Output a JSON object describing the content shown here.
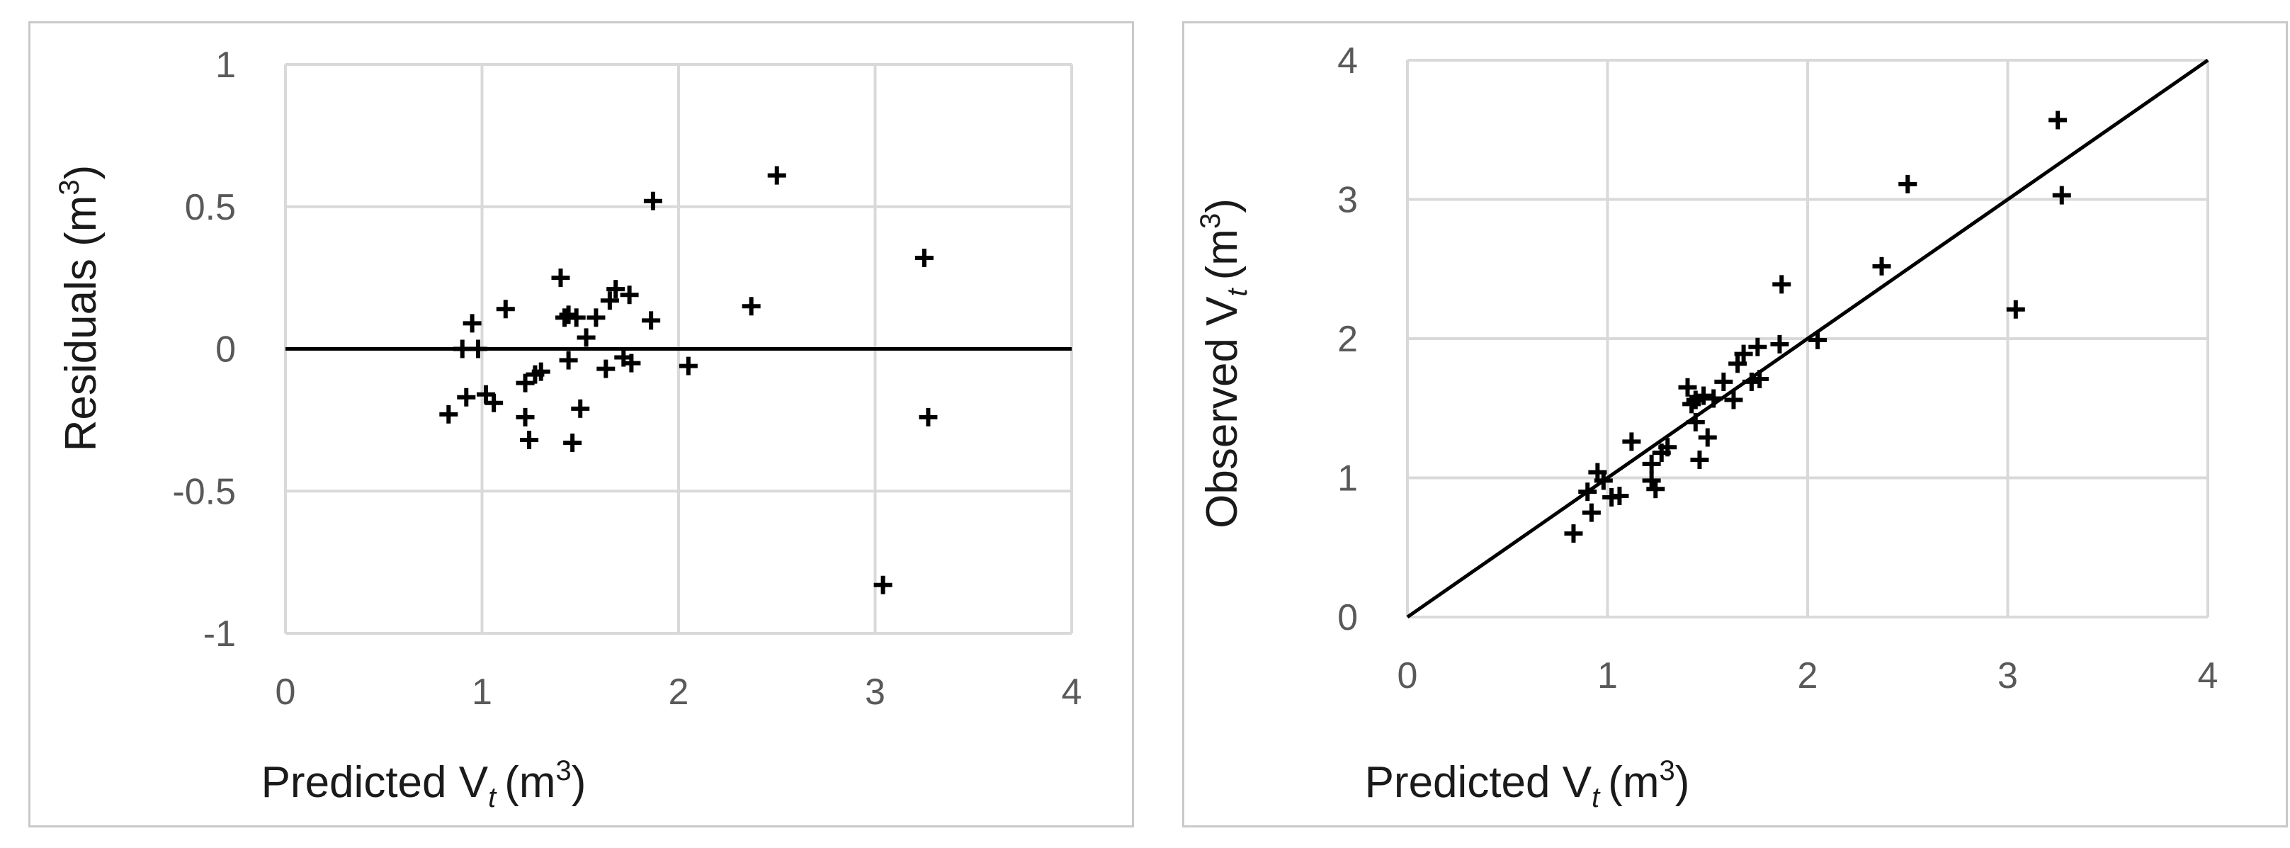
{
  "chart_data": [
    {
      "type": "scatter",
      "title": "",
      "xlabel": "Predicted V",
      "xlabel_sub": "t",
      "xlabel_unit_pre": "(m",
      "xlabel_unit_sup": "3",
      "xlabel_unit_post": ")",
      "ylabel": "Residuals (m",
      "ylabel_sup": "3",
      "ylabel_post": ")",
      "xlim": [
        0,
        4
      ],
      "ylim": [
        -1,
        1
      ],
      "x_ticks": [
        "0",
        "1",
        "2",
        "3",
        "4"
      ],
      "y_ticks": [
        "-1",
        "-0.5",
        "0",
        "0.5",
        "1"
      ],
      "grid": true,
      "reference_line": "y=0",
      "marker": "plus",
      "points": [
        [
          0.83,
          -0.23
        ],
        [
          0.9,
          0.0
        ],
        [
          0.92,
          -0.17
        ],
        [
          0.95,
          0.09
        ],
        [
          0.98,
          0.0
        ],
        [
          1.02,
          -0.16
        ],
        [
          1.06,
          -0.19
        ],
        [
          1.12,
          0.14
        ],
        [
          1.22,
          -0.12
        ],
        [
          1.22,
          -0.24
        ],
        [
          1.24,
          -0.32
        ],
        [
          1.27,
          -0.09
        ],
        [
          1.3,
          -0.08
        ],
        [
          1.4,
          0.25
        ],
        [
          1.42,
          0.11
        ],
        [
          1.44,
          0.12
        ],
        [
          1.44,
          -0.04
        ],
        [
          1.46,
          -0.33
        ],
        [
          1.48,
          0.11
        ],
        [
          1.5,
          -0.21
        ],
        [
          1.53,
          0.04
        ],
        [
          1.58,
          0.11
        ],
        [
          1.63,
          -0.07
        ],
        [
          1.65,
          0.17
        ],
        [
          1.68,
          0.21
        ],
        [
          1.72,
          -0.03
        ],
        [
          1.75,
          0.19
        ],
        [
          1.76,
          -0.05
        ],
        [
          1.86,
          0.1
        ],
        [
          1.87,
          0.52
        ],
        [
          2.05,
          -0.06
        ],
        [
          2.37,
          0.15
        ],
        [
          2.5,
          0.61
        ],
        [
          3.04,
          -0.83
        ],
        [
          3.25,
          0.32
        ],
        [
          3.27,
          -0.24
        ]
      ]
    },
    {
      "type": "scatter",
      "title": "",
      "xlabel": "Predicted V",
      "xlabel_sub": "t",
      "xlabel_unit_pre": "(m",
      "xlabel_unit_sup": "3",
      "xlabel_unit_post": ")",
      "ylabel": "Observed V",
      "ylabel_sub": "t",
      "ylabel_unit_pre": "(m",
      "ylabel_unit_sup": "3",
      "ylabel_unit_post": ")",
      "xlim": [
        0,
        4
      ],
      "ylim": [
        0,
        4
      ],
      "x_ticks": [
        "0",
        "1",
        "2",
        "3",
        "4"
      ],
      "y_ticks": [
        "0",
        "1",
        "2",
        "3",
        "4"
      ],
      "grid": true,
      "reference_line": "y=x",
      "marker": "plus",
      "points": [
        [
          0.83,
          0.6
        ],
        [
          0.9,
          0.9
        ],
        [
          0.92,
          0.75
        ],
        [
          0.95,
          1.04
        ],
        [
          0.98,
          0.98
        ],
        [
          1.02,
          0.86
        ],
        [
          1.06,
          0.87
        ],
        [
          1.12,
          1.26
        ],
        [
          1.22,
          1.1
        ],
        [
          1.22,
          0.98
        ],
        [
          1.24,
          0.92
        ],
        [
          1.27,
          1.18
        ],
        [
          1.3,
          1.22
        ],
        [
          1.4,
          1.65
        ],
        [
          1.42,
          1.53
        ],
        [
          1.44,
          1.56
        ],
        [
          1.44,
          1.4
        ],
        [
          1.46,
          1.13
        ],
        [
          1.48,
          1.59
        ],
        [
          1.5,
          1.29
        ],
        [
          1.53,
          1.57
        ],
        [
          1.58,
          1.69
        ],
        [
          1.63,
          1.56
        ],
        [
          1.65,
          1.82
        ],
        [
          1.68,
          1.89
        ],
        [
          1.72,
          1.69
        ],
        [
          1.75,
          1.94
        ],
        [
          1.76,
          1.71
        ],
        [
          1.86,
          1.96
        ],
        [
          1.87,
          2.39
        ],
        [
          2.05,
          1.99
        ],
        [
          2.37,
          2.52
        ],
        [
          2.5,
          3.11
        ],
        [
          3.04,
          2.21
        ],
        [
          3.25,
          3.57
        ],
        [
          3.27,
          3.03
        ]
      ]
    }
  ]
}
